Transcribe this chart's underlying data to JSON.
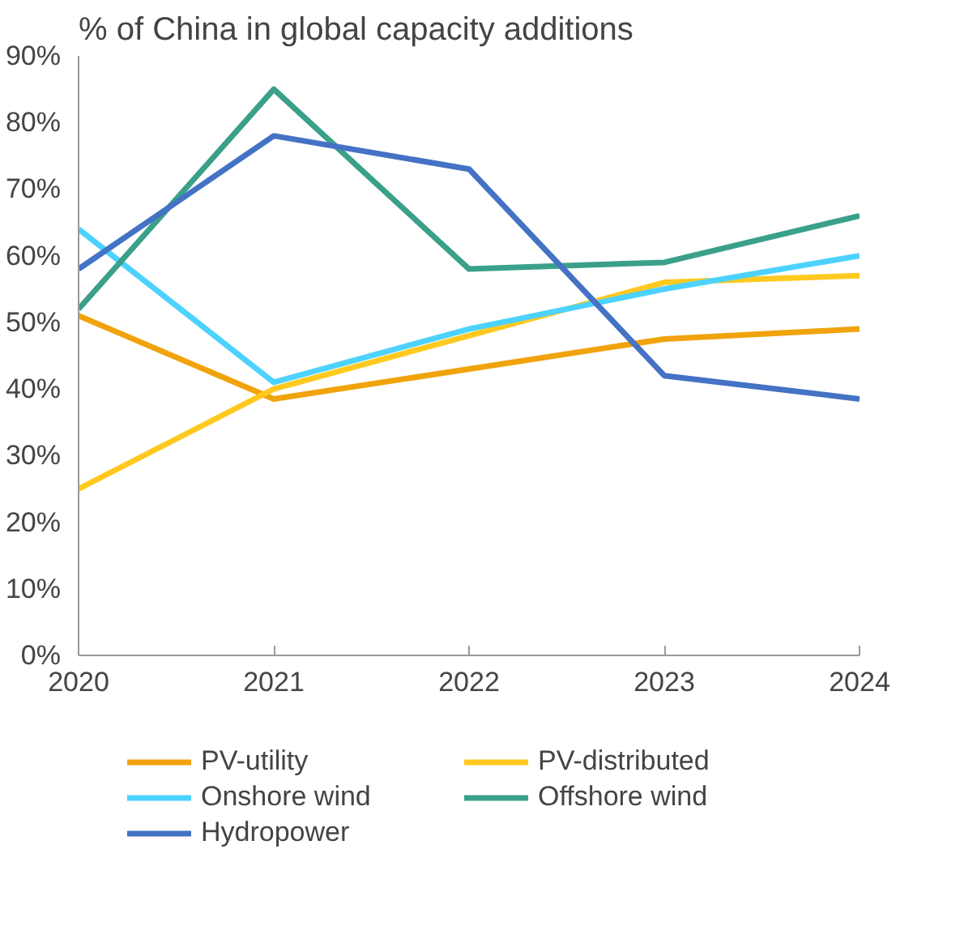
{
  "chart_data": {
    "type": "line",
    "title": "% of China in global capacity additions",
    "x": [
      2020,
      2021,
      2022,
      2023,
      2024
    ],
    "series": [
      {
        "name": "PV-utility",
        "color": "#f0a30a",
        "values": [
          51,
          38.5,
          43,
          47.5,
          49
        ]
      },
      {
        "name": "PV-distributed",
        "color": "#ffc91f",
        "values": [
          25,
          40,
          48,
          56,
          57
        ]
      },
      {
        "name": "Onshore wind",
        "color": "#4dd2ff",
        "values": [
          64,
          41,
          49,
          55,
          60
        ]
      },
      {
        "name": "Offshore wind",
        "color": "#3aa08a",
        "values": [
          52,
          85,
          58,
          59,
          66
        ]
      },
      {
        "name": "Hydropower",
        "color": "#4472c4",
        "values": [
          58,
          78,
          73,
          42,
          38.5
        ]
      }
    ],
    "xlim": [
      2020,
      2024
    ],
    "xticks": [
      2020,
      2021,
      2022,
      2023,
      2024
    ],
    "ylim": [
      0,
      90
    ],
    "yticks": [
      {
        "value": 0,
        "label": "0%"
      },
      {
        "value": 10,
        "label": "10%"
      },
      {
        "value": 20,
        "label": "20%"
      },
      {
        "value": 30,
        "label": "30%"
      },
      {
        "value": 40,
        "label": "40%"
      },
      {
        "value": 50,
        "label": "50%"
      },
      {
        "value": 60,
        "label": "60%"
      },
      {
        "value": 70,
        "label": "70%"
      },
      {
        "value": 80,
        "label": "80%"
      },
      {
        "value": 90,
        "label": "90%"
      }
    ],
    "grid": false,
    "legend": "bottom",
    "marker": "none",
    "line_style": "solid"
  }
}
